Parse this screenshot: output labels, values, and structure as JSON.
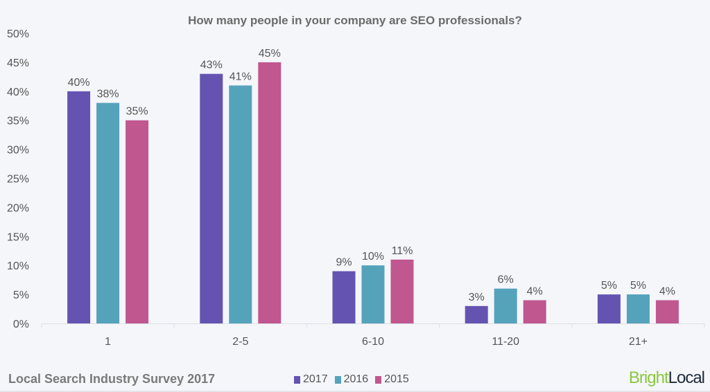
{
  "chart_data": {
    "type": "bar",
    "title": "How many people in your company are SEO professionals?",
    "categories": [
      "1",
      "2-5",
      "6-10",
      "11-20",
      "21+"
    ],
    "series": [
      {
        "name": "2017",
        "color": "#6553b2",
        "values": [
          40,
          43,
          9,
          3,
          5
        ],
        "labels": [
          "40%",
          "43%",
          "9%",
          "3%",
          "5%"
        ]
      },
      {
        "name": "2016",
        "color": "#55a2bb",
        "values": [
          38,
          41,
          10,
          6,
          5
        ],
        "labels": [
          "38%",
          "41%",
          "10%",
          "6%",
          "5%"
        ]
      },
      {
        "name": "2015",
        "color": "#c0578f",
        "values": [
          35,
          45,
          11,
          4,
          4
        ],
        "labels": [
          "35%",
          "45%",
          "11%",
          "4%",
          "4%"
        ]
      }
    ],
    "ylim": [
      0,
      50
    ],
    "yticks": [
      "0%",
      "5%",
      "10%",
      "15%",
      "20%",
      "25%",
      "30%",
      "35%",
      "40%",
      "45%",
      "50%"
    ],
    "grid": false,
    "legend": "bottom"
  },
  "footer": {
    "survey_title": "Local Search Industry Survey 2017",
    "logo_part1": "Bright",
    "logo_part2": "Local"
  }
}
